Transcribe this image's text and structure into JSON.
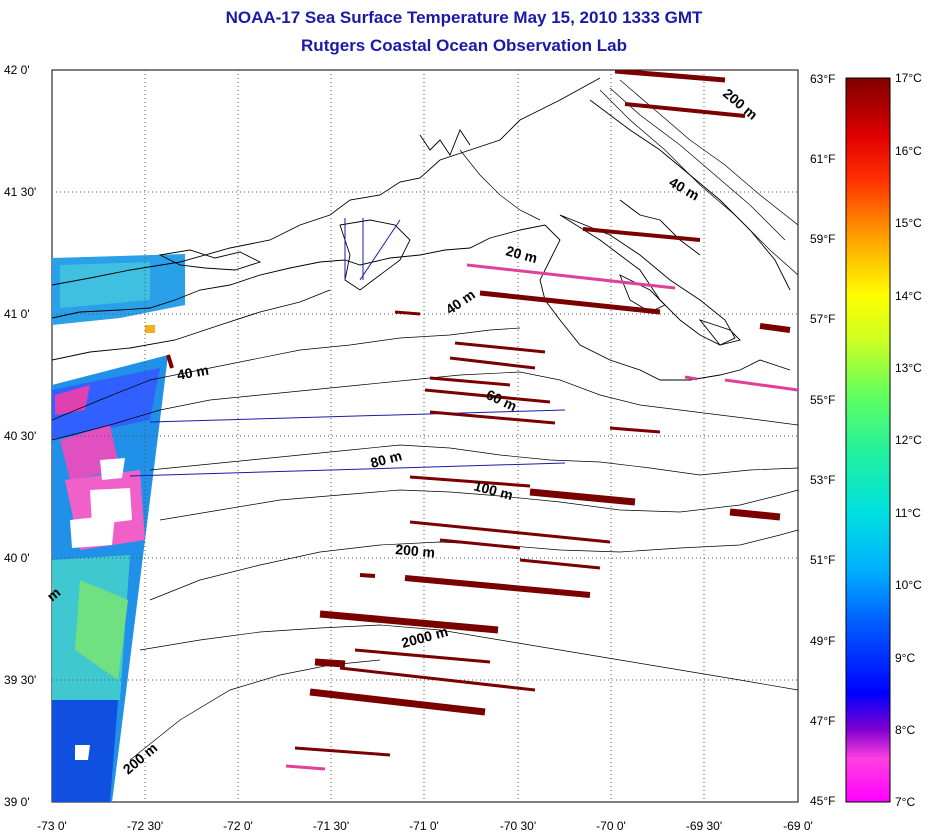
{
  "title": "NOAA-17 Sea Surface Temperature May 15, 2010 1333 GMT",
  "subtitle": "Rutgers Coastal Ocean Observation Lab",
  "lat_labels": [
    "42 0'",
    "41 30'",
    "41 0'",
    "40 30'",
    "40 0'",
    "39 30'",
    "39 0'"
  ],
  "lon_labels": [
    "-73 0'",
    "-72 30'",
    "-72 0'",
    "-71 30'",
    "-71 0'",
    "-70 30'",
    "-70 0'",
    "-69 30'",
    "-69 0'"
  ],
  "f_labels": [
    "63°F",
    "61°F",
    "59°F",
    "57°F",
    "55°F",
    "53°F",
    "51°F",
    "49°F",
    "47°F",
    "45°F"
  ],
  "c_labels": [
    "17°C",
    "16°C",
    "15°C",
    "14°C",
    "13°C",
    "12°C",
    "11°C",
    "10°C",
    "9°C",
    "8°C",
    "7°C"
  ],
  "contour_labels": [
    "200 m",
    "40 m",
    "20 m",
    "40 m",
    "40 m",
    "60 m",
    "80 m",
    "100 m",
    "200 m",
    "2000 m",
    "200 m",
    "m"
  ],
  "colors": {
    "title": "#1a1aa8",
    "land_line": "#000000",
    "scan_artifact": "#7a0000",
    "scan_artifact_pink": "#e0409a"
  },
  "colorbar": {
    "min_c": 7,
    "max_c": 17,
    "stops": [
      "#ff00ff",
      "#a000c8",
      "#0000ff",
      "#0090ff",
      "#00e0e0",
      "#40ff80",
      "#c0ff20",
      "#ffff00",
      "#ffa000",
      "#ff3000",
      "#e00000",
      "#800000"
    ]
  }
}
